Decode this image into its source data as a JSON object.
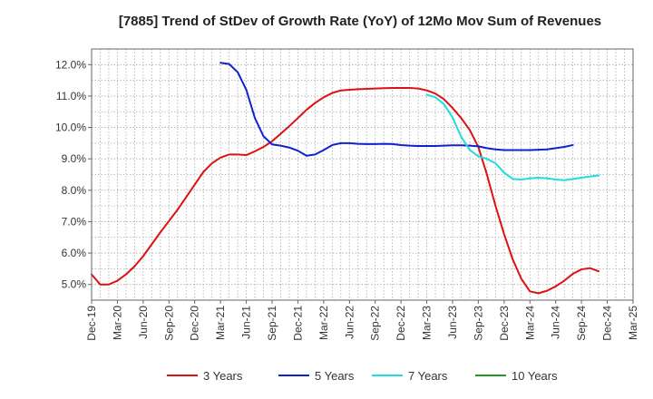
{
  "chart_data": {
    "type": "line",
    "title": "[7885]  Trend of StDev of Growth Rate (YoY) of 12Mo Mov Sum of Revenues",
    "xlabel": "",
    "ylabel": "",
    "x_ticks": [
      "Dec-19",
      "Mar-20",
      "Jun-20",
      "Sep-20",
      "Dec-20",
      "Mar-21",
      "Jun-21",
      "Sep-21",
      "Dec-21",
      "Mar-22",
      "Jun-22",
      "Sep-22",
      "Dec-22",
      "Mar-23",
      "Jun-23",
      "Sep-23",
      "Dec-23",
      "Mar-24",
      "Jun-24",
      "Sep-24",
      "Dec-24",
      "Mar-25"
    ],
    "y_ticks": [
      "5.0%",
      "6.0%",
      "7.0%",
      "8.0%",
      "9.0%",
      "10.0%",
      "11.0%",
      "12.0%"
    ],
    "ylim": [
      4.5,
      12.5
    ],
    "grid": true,
    "legend_position": "bottom",
    "x_start": "2019-12",
    "series": [
      {
        "name": "3 Years",
        "color": "#dd1111",
        "start_index": 0,
        "values": [
          5.32,
          5.0,
          5.0,
          5.12,
          5.32,
          5.58,
          5.9,
          6.28,
          6.66,
          7.02,
          7.38,
          7.78,
          8.18,
          8.58,
          8.86,
          9.04,
          9.14,
          9.14,
          9.12,
          9.24,
          9.38,
          9.56,
          9.8,
          10.04,
          10.3,
          10.56,
          10.78,
          10.96,
          11.1,
          11.18,
          11.2,
          11.22,
          11.23,
          11.24,
          11.25,
          11.26,
          11.26,
          11.26,
          11.24,
          11.18,
          11.08,
          10.9,
          10.62,
          10.3,
          9.92,
          9.38,
          8.5,
          7.5,
          6.6,
          5.8,
          5.18,
          4.78,
          4.72,
          4.8,
          4.94,
          5.12,
          5.34,
          5.48,
          5.52,
          5.42
        ]
      },
      {
        "name": "5 Years",
        "color": "#1122cc",
        "start_index": 15,
        "values": [
          12.06,
          12.02,
          11.76,
          11.2,
          10.3,
          9.72,
          9.46,
          9.42,
          9.36,
          9.26,
          9.1,
          9.14,
          9.28,
          9.44,
          9.5,
          9.5,
          9.48,
          9.47,
          9.47,
          9.48,
          9.47,
          9.44,
          9.42,
          9.41,
          9.41,
          9.41,
          9.42,
          9.43,
          9.43,
          9.42,
          9.4,
          9.34,
          9.3,
          9.28,
          9.28,
          9.28,
          9.28,
          9.29,
          9.3,
          9.34,
          9.38,
          9.44
        ]
      },
      {
        "name": "7 Years",
        "color": "#22dddd",
        "start_index": 39,
        "values": [
          11.04,
          10.96,
          10.74,
          10.32,
          9.7,
          9.28,
          9.08,
          9.0,
          8.86,
          8.56,
          8.36,
          8.34,
          8.38,
          8.4,
          8.38,
          8.34,
          8.32,
          8.36,
          8.4,
          8.44,
          8.47
        ]
      },
      {
        "name": "10 Years",
        "color": "#229922",
        "start_index": 0,
        "values": []
      }
    ]
  }
}
